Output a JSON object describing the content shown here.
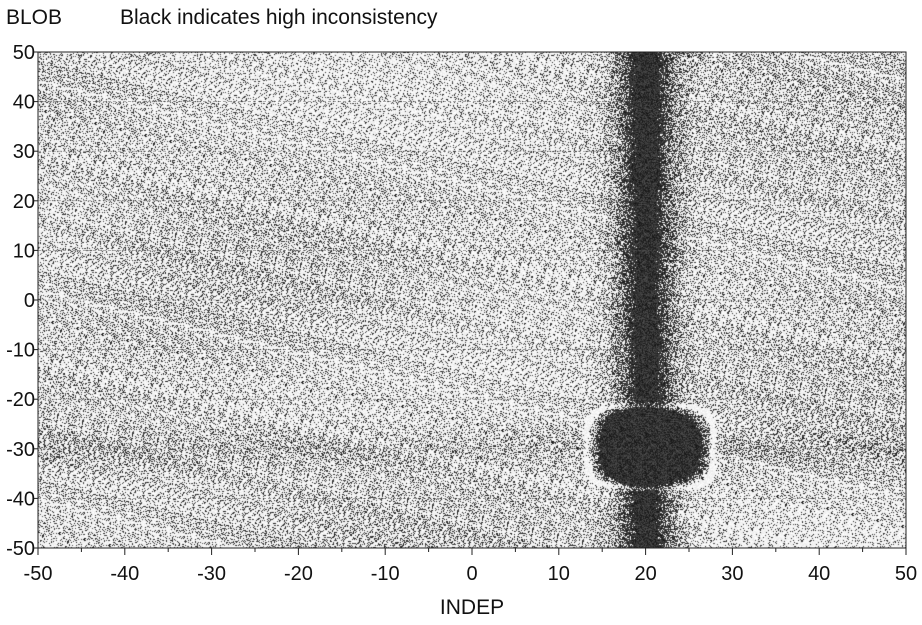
{
  "header": {
    "ylabel": "BLOB",
    "title": "Black indicates high inconsistency"
  },
  "chart_data": {
    "type": "heatmap",
    "title": "Black indicates high inconsistency",
    "xlabel": "INDEP",
    "ylabel": "BLOB",
    "xlim": [
      -50,
      50
    ],
    "ylim": [
      -50,
      50
    ],
    "xticks": [
      "-50",
      "-40",
      "-30",
      "-20",
      "-10",
      "0",
      "10",
      "20",
      "30",
      "40",
      "50"
    ],
    "yticks": [
      "50",
      "40",
      "30",
      "20",
      "10",
      "0",
      "-10",
      "-20",
      "-30",
      "-40",
      "-50"
    ],
    "grid": true,
    "colorscale": [
      "#ffffff",
      "#000000"
    ],
    "features": [
      {
        "shape": "vertical-band",
        "x_center": 20,
        "x_half_width": 4,
        "y_range": [
          -50,
          50
        ],
        "intensity": 0.9
      },
      {
        "shape": "blob",
        "x_range": [
          14,
          27
        ],
        "y_range": [
          -37,
          -22
        ],
        "intensity": 1.0
      }
    ]
  }
}
